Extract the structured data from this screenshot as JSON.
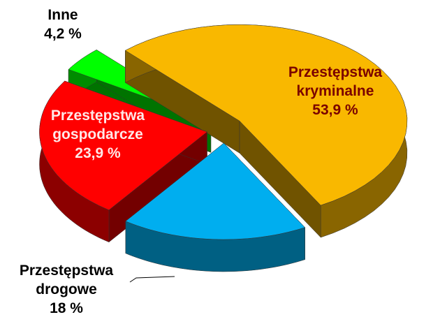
{
  "chart_data": {
    "type": "pie",
    "categories": [
      "Przestępstwa kryminalne",
      "Przestępstwa drogowe",
      "Przestępstwa gospodarcze",
      "Inne"
    ],
    "values": [
      53.9,
      18,
      23.9,
      4.2
    ],
    "value_labels": [
      "53,9 %",
      "18 %",
      "23,9 %",
      "4,2 %"
    ],
    "colors": [
      "#f9b800",
      "#00aeef",
      "#ff0000",
      "#00ff00"
    ]
  }
}
